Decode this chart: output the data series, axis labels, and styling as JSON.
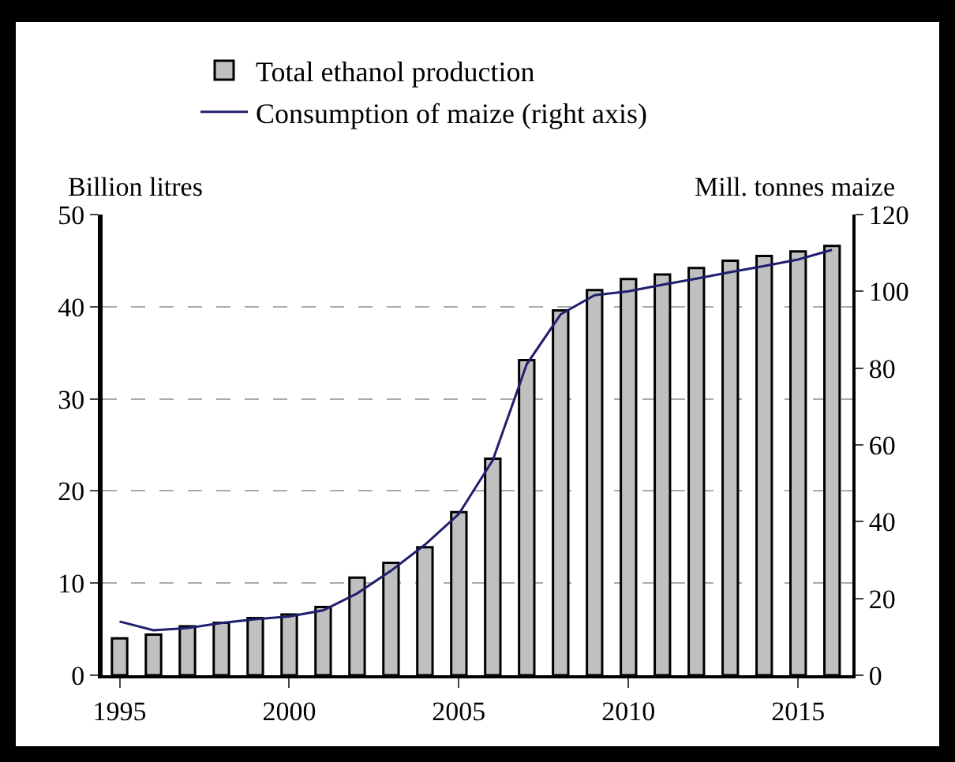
{
  "chart_data": {
    "type": "bar",
    "x": [
      1995,
      1996,
      1997,
      1998,
      1999,
      2000,
      2001,
      2002,
      2003,
      2004,
      2005,
      2006,
      2007,
      2008,
      2009,
      2010,
      2011,
      2012,
      2013,
      2014,
      2015,
      2016
    ],
    "series": [
      {
        "name": "Total ethanol production",
        "color": "#c0c0c0",
        "values": [
          4.0,
          4.4,
          5.3,
          5.7,
          6.2,
          6.6,
          7.4,
          10.6,
          12.2,
          13.9,
          17.7,
          23.5,
          34.2,
          39.6,
          41.8,
          43.0,
          43.5,
          44.2,
          45.0,
          45.5,
          46.0,
          46.6
        ]
      },
      {
        "name": "Consumption of maize (right axis)",
        "type": "line",
        "axis": "y2",
        "color": "#1f1f6e",
        "values": [
          14,
          11.7,
          12.3,
          13.6,
          14.6,
          15.3,
          16.9,
          21.3,
          27.2,
          34,
          42,
          56,
          81,
          94,
          99,
          100,
          101.7,
          103.3,
          105,
          106.6,
          108.3,
          110.8
        ]
      }
    ],
    "ylabel": "Billion litres",
    "y2label": "Mill. tonnes maize",
    "xlim": [
      1994.5,
      2016.6
    ],
    "xticks": [
      1995,
      2000,
      2005,
      2010,
      2015
    ],
    "ylim": [
      0,
      50
    ],
    "yticks": [
      0,
      10,
      20,
      30,
      40,
      50
    ],
    "y2lim": [
      0,
      120
    ],
    "y2ticks": [
      0,
      20,
      40,
      60,
      80,
      100,
      120
    ],
    "grid": "y",
    "legend": "top left",
    "marker": "none",
    "line_style": "solid"
  }
}
